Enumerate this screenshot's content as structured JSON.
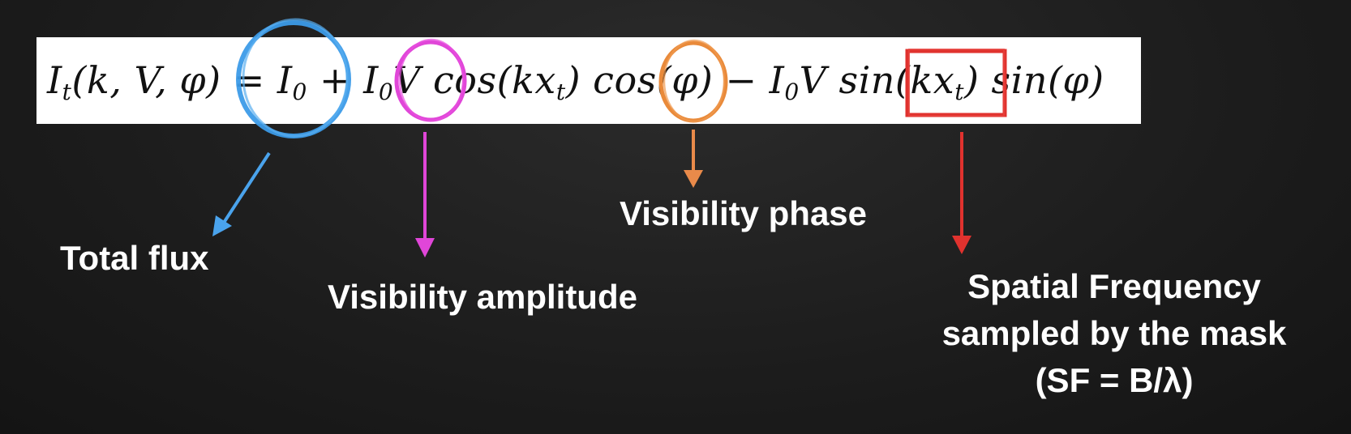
{
  "equation": {
    "latex": "I_t(k, V, \\phi) = I_0 + I_0 V cos(k x_t) cos(\\phi) - I_0 V sin(k x_t) sin(\\phi)"
  },
  "annotations": [
    {
      "id": "total-flux",
      "label": "Total flux",
      "color": "#4aa3ec",
      "marker": "circle"
    },
    {
      "id": "visibility-amplitude",
      "label": "Visibility amplitude",
      "color": "#e046d8",
      "marker": "circle"
    },
    {
      "id": "visibility-phase",
      "label": "Visibility phase",
      "color": "#e98a4a",
      "marker": "circle"
    },
    {
      "id": "spatial-frequency",
      "label_lines": [
        "Spatial Frequency",
        "sampled by the mask",
        "(SF = B/λ)"
      ],
      "color": "#e0322e",
      "marker": "rectangle"
    }
  ]
}
